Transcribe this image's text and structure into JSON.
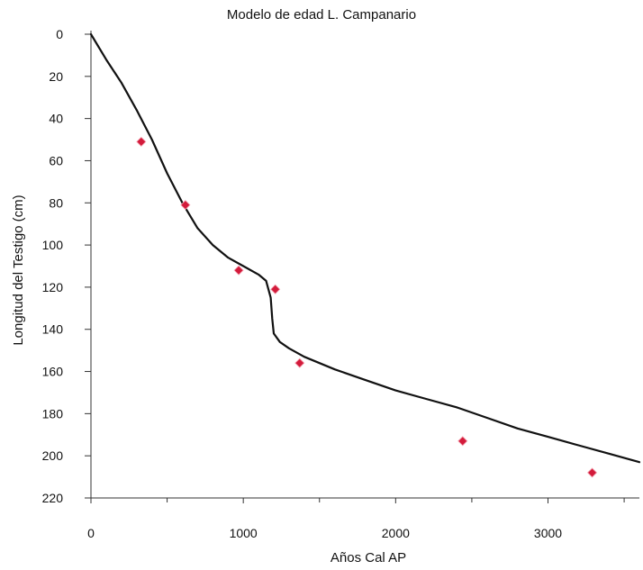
{
  "chart_data": {
    "type": "line",
    "title": "Modelo de edad L. Campanario",
    "xlabel": "Años Cal AP",
    "ylabel": "Longitud del Testigo (cm)",
    "xlim": [
      0,
      3600
    ],
    "ylim": [
      0,
      220
    ],
    "y_inverted": true,
    "x_ticks": [
      0,
      1000,
      2000,
      3000
    ],
    "y_ticks": [
      0,
      20,
      40,
      60,
      80,
      100,
      120,
      140,
      160,
      180,
      200,
      220
    ],
    "grid": false,
    "series": [
      {
        "kind": "line",
        "color": "#111111",
        "points": [
          [
            0,
            0
          ],
          [
            100,
            12
          ],
          [
            200,
            23
          ],
          [
            300,
            36
          ],
          [
            400,
            50
          ],
          [
            500,
            66
          ],
          [
            600,
            80
          ],
          [
            700,
            92
          ],
          [
            800,
            100
          ],
          [
            900,
            106
          ],
          [
            1000,
            110
          ],
          [
            1100,
            114
          ],
          [
            1150,
            117
          ],
          [
            1180,
            125
          ],
          [
            1190,
            135
          ],
          [
            1200,
            142
          ],
          [
            1240,
            146
          ],
          [
            1300,
            149
          ],
          [
            1400,
            153
          ],
          [
            1600,
            159
          ],
          [
            1800,
            164
          ],
          [
            2000,
            169
          ],
          [
            2200,
            173
          ],
          [
            2400,
            177
          ],
          [
            2600,
            182
          ],
          [
            2800,
            187
          ],
          [
            3000,
            191
          ],
          [
            3200,
            195
          ],
          [
            3400,
            199
          ],
          [
            3600,
            203
          ]
        ]
      },
      {
        "kind": "scatter",
        "marker": "diamond",
        "color": "#d31b3b",
        "points": [
          [
            330,
            51
          ],
          [
            620,
            81
          ],
          [
            970,
            112
          ],
          [
            1210,
            121
          ],
          [
            1370,
            156
          ],
          [
            2440,
            193
          ],
          [
            3290,
            208
          ]
        ]
      }
    ]
  }
}
